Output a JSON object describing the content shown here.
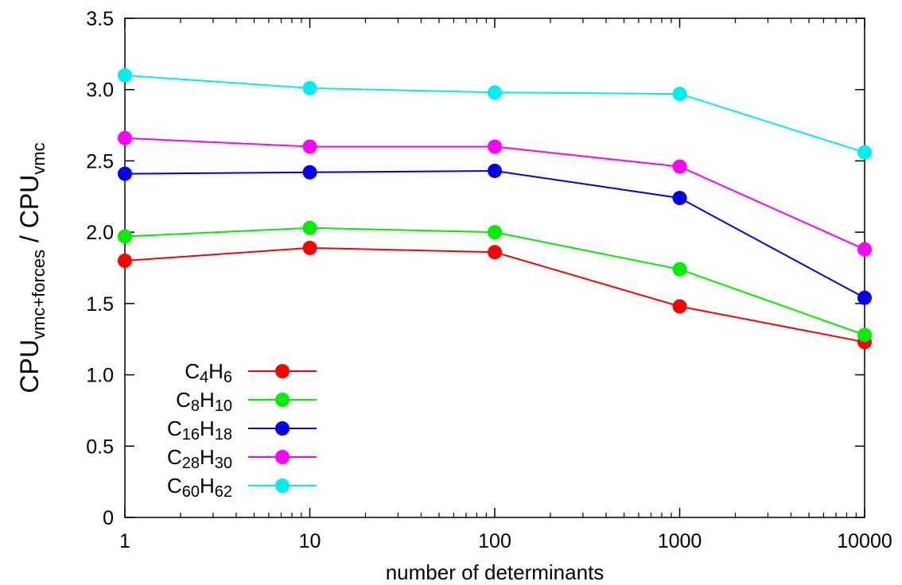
{
  "chart_data": {
    "type": "line",
    "x_scale": "log",
    "xlabel": "number of determinants",
    "ylabel": {
      "base": "CPU",
      "sub1": "vmc+forces",
      "separator": " / ",
      "base2": "CPU",
      "sub2": "vmc"
    },
    "x_ticks": [
      1,
      10,
      100,
      1000,
      10000
    ],
    "x_tick_labels": [
      "1",
      "10",
      "100",
      "1000",
      "10000"
    ],
    "y_ticks": [
      0,
      0.5,
      1.0,
      1.5,
      2.0,
      2.5,
      3.0,
      3.5
    ],
    "y_tick_labels": [
      "0",
      "0.5",
      "1.0",
      "1.5",
      "2.0",
      "2.5",
      "3.0",
      "3.5"
    ],
    "xlim": [
      1,
      10000
    ],
    "ylim": [
      0,
      3.5
    ],
    "grid": false,
    "legend_position": "bottom-left",
    "x": [
      1,
      10,
      100,
      1000,
      10000
    ],
    "series": [
      {
        "name": "C4H6",
        "label_parts": [
          [
            "C",
            false
          ],
          [
            "4",
            true
          ],
          [
            "H",
            false
          ],
          [
            "6",
            true
          ]
        ],
        "color": "#ff0000",
        "values": [
          1.8,
          1.89,
          1.86,
          1.48,
          1.23
        ]
      },
      {
        "name": "C8H10",
        "label_parts": [
          [
            "C",
            false
          ],
          [
            "8",
            true
          ],
          [
            "H",
            false
          ],
          [
            "10",
            true
          ]
        ],
        "color": "#00ee00",
        "values": [
          1.97,
          2.03,
          2.0,
          1.74,
          1.28
        ]
      },
      {
        "name": "C16H18",
        "label_parts": [
          [
            "C",
            false
          ],
          [
            "16",
            true
          ],
          [
            "H",
            false
          ],
          [
            "18",
            true
          ]
        ],
        "color": "#0000ee",
        "values": [
          2.41,
          2.42,
          2.43,
          2.24,
          1.54
        ]
      },
      {
        "name": "C28H30",
        "label_parts": [
          [
            "C",
            false
          ],
          [
            "28",
            true
          ],
          [
            "H",
            false
          ],
          [
            "30",
            true
          ]
        ],
        "color": "#ff00ff",
        "values": [
          2.66,
          2.6,
          2.6,
          2.46,
          1.88
        ]
      },
      {
        "name": "C60H62",
        "label_parts": [
          [
            "C",
            false
          ],
          [
            "60",
            true
          ],
          [
            "H",
            false
          ],
          [
            "62",
            true
          ]
        ],
        "color": "#00eeee",
        "values": [
          3.1,
          3.01,
          2.98,
          2.97,
          2.56
        ]
      }
    ]
  }
}
